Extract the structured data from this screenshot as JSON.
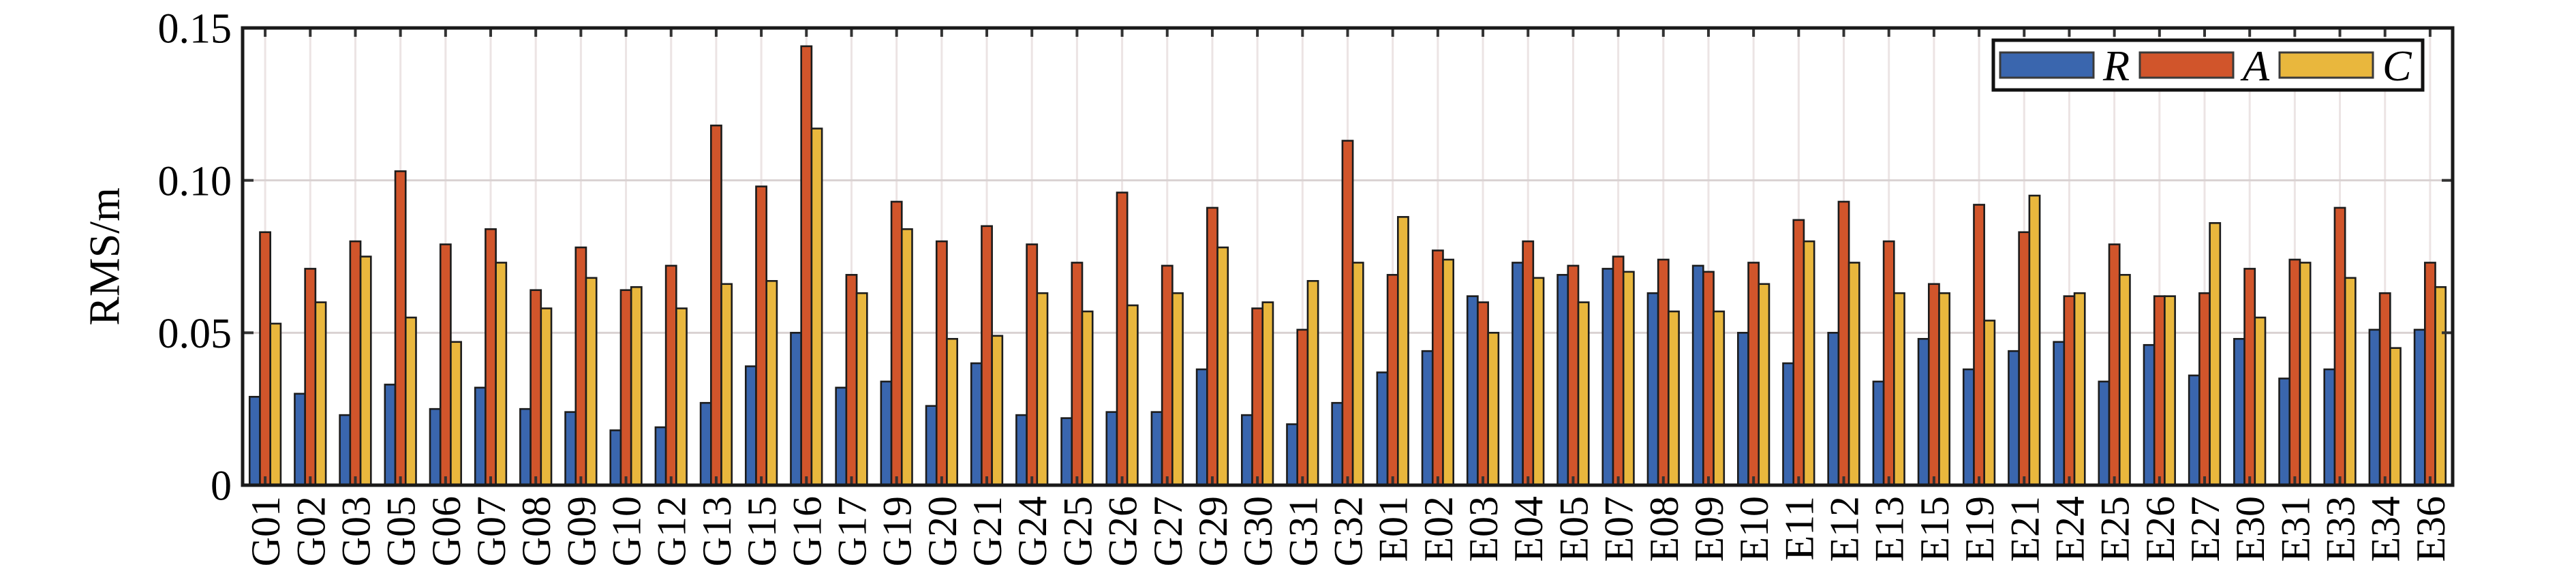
{
  "chart_data": {
    "type": "bar",
    "title": "",
    "ylabel": "RMS/m",
    "xlabel": "",
    "ylim": [
      0,
      0.15
    ],
    "grid": {
      "vertical_per_category": true,
      "horizontal_at_ticks": true
    },
    "legend_position": "top-right",
    "yticks": [
      {
        "value": 0,
        "label": "0"
      },
      {
        "value": 0.05,
        "label": "0.05"
      },
      {
        "value": 0.1,
        "label": "0.10"
      },
      {
        "value": 0.15,
        "label": "0.15"
      }
    ],
    "categories": [
      "G01",
      "G02",
      "G03",
      "G05",
      "G06",
      "G07",
      "G08",
      "G09",
      "G10",
      "G12",
      "G13",
      "G15",
      "G16",
      "G17",
      "G19",
      "G20",
      "G21",
      "G24",
      "G25",
      "G26",
      "G27",
      "G29",
      "G30",
      "G31",
      "G32",
      "E01",
      "E02",
      "E03",
      "E04",
      "E05",
      "E07",
      "E08",
      "E09",
      "E10",
      "E11",
      "E12",
      "E13",
      "E15",
      "E19",
      "E21",
      "E24",
      "E25",
      "E26",
      "E27",
      "E30",
      "E31",
      "E33",
      "E34",
      "E36"
    ],
    "series": [
      {
        "name": "R",
        "color": "#3A66AE",
        "values": [
          0.029,
          0.03,
          0.023,
          0.033,
          0.025,
          0.032,
          0.025,
          0.024,
          0.018,
          0.019,
          0.027,
          0.039,
          0.05,
          0.032,
          0.034,
          0.026,
          0.04,
          0.023,
          0.022,
          0.024,
          0.024,
          0.038,
          0.023,
          0.02,
          0.027,
          0.037,
          0.044,
          0.062,
          0.073,
          0.069,
          0.071,
          0.063,
          0.072,
          0.05,
          0.04,
          0.05,
          0.034,
          0.048,
          0.038,
          0.044,
          0.047,
          0.034,
          0.046,
          0.036,
          0.048,
          0.035,
          0.038,
          0.051,
          0.051
        ]
      },
      {
        "name": "A",
        "color": "#D1552B",
        "values": [
          0.083,
          0.071,
          0.08,
          0.103,
          0.079,
          0.084,
          0.064,
          0.078,
          0.064,
          0.072,
          0.118,
          0.098,
          0.144,
          0.069,
          0.093,
          0.08,
          0.085,
          0.079,
          0.073,
          0.096,
          0.072,
          0.091,
          0.058,
          0.051,
          0.113,
          0.069,
          0.077,
          0.06,
          0.08,
          0.072,
          0.075,
          0.074,
          0.07,
          0.073,
          0.087,
          0.093,
          0.08,
          0.066,
          0.092,
          0.083,
          0.062,
          0.079,
          0.062,
          0.063,
          0.071,
          0.074,
          0.091,
          0.063,
          0.073
        ]
      },
      {
        "name": "C",
        "color": "#E9B73D",
        "values": [
          0.053,
          0.06,
          0.075,
          0.055,
          0.047,
          0.073,
          0.058,
          0.068,
          0.065,
          0.058,
          0.066,
          0.067,
          0.117,
          0.063,
          0.084,
          0.048,
          0.049,
          0.063,
          0.057,
          0.059,
          0.063,
          0.078,
          0.06,
          0.067,
          0.073,
          0.088,
          0.074,
          0.05,
          0.068,
          0.06,
          0.07,
          0.057,
          0.057,
          0.066,
          0.08,
          0.073,
          0.063,
          0.063,
          0.054,
          0.095,
          0.063,
          0.069,
          0.062,
          0.086,
          0.055,
          0.073,
          0.068,
          0.045,
          0.065
        ]
      }
    ],
    "colors": {
      "axis_border": "#1A1A1A",
      "tick": "#333333",
      "grid_vertical": "#ECE4E4",
      "grid_horizontal": "#D9D2D2",
      "bar_outline": "#1C1C1C",
      "legend_border": "#111111",
      "background": "#FFFFFF"
    }
  }
}
